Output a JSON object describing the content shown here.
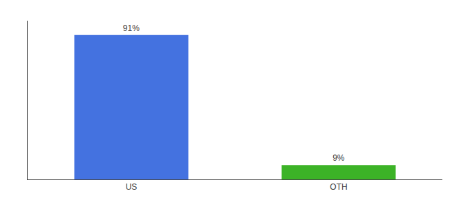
{
  "chart_data": {
    "type": "bar",
    "categories": [
      "US",
      "OTH"
    ],
    "values": [
      91,
      9
    ],
    "value_labels": [
      "91%",
      "9%"
    ],
    "colors": [
      "#4472e0",
      "#3cb327"
    ],
    "ylim": [
      0,
      100
    ],
    "data_labels": true,
    "tick_labels": "x",
    "grid": false
  }
}
